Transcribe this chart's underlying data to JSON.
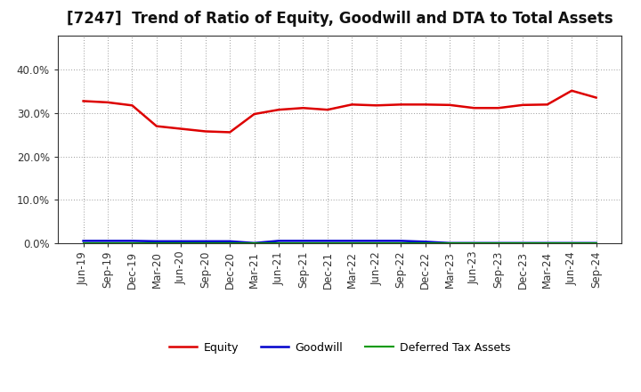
{
  "title": "[7247]  Trend of Ratio of Equity, Goodwill and DTA to Total Assets",
  "x_labels": [
    "Jun-19",
    "Sep-19",
    "Dec-19",
    "Mar-20",
    "Jun-20",
    "Sep-20",
    "Dec-20",
    "Mar-21",
    "Jun-21",
    "Sep-21",
    "Dec-21",
    "Mar-22",
    "Jun-22",
    "Sep-22",
    "Dec-22",
    "Mar-23",
    "Jun-23",
    "Sep-23",
    "Dec-23",
    "Mar-24",
    "Jun-24",
    "Sep-24"
  ],
  "equity": [
    0.328,
    0.325,
    0.318,
    0.27,
    0.264,
    0.258,
    0.256,
    0.298,
    0.308,
    0.312,
    0.308,
    0.32,
    0.318,
    0.32,
    0.32,
    0.319,
    0.312,
    0.312,
    0.319,
    0.32,
    0.352,
    0.336
  ],
  "goodwill": [
    0.005,
    0.005,
    0.005,
    0.004,
    0.004,
    0.004,
    0.004,
    0.0,
    0.005,
    0.005,
    0.005,
    0.005,
    0.005,
    0.005,
    0.003,
    0.0,
    0.0,
    0.0,
    0.0,
    0.0,
    0.0,
    0.0
  ],
  "dta": [
    0.0,
    0.0,
    0.0,
    0.0,
    0.0,
    0.0,
    0.0,
    0.0,
    0.0,
    0.0,
    0.0,
    0.0,
    0.0,
    0.0,
    0.0,
    0.0,
    0.0,
    0.0,
    0.0,
    0.0,
    0.0,
    0.0
  ],
  "equity_color": "#dd0000",
  "goodwill_color": "#0000cc",
  "dta_color": "#009900",
  "ylim": [
    0.0,
    0.48
  ],
  "yticks": [
    0.0,
    0.1,
    0.2,
    0.3,
    0.4
  ],
  "background_color": "#ffffff",
  "plot_bg_color": "#f0f0f0",
  "grid_color": "#999999",
  "title_fontsize": 12,
  "tick_fontsize": 8.5,
  "legend_fontsize": 9
}
